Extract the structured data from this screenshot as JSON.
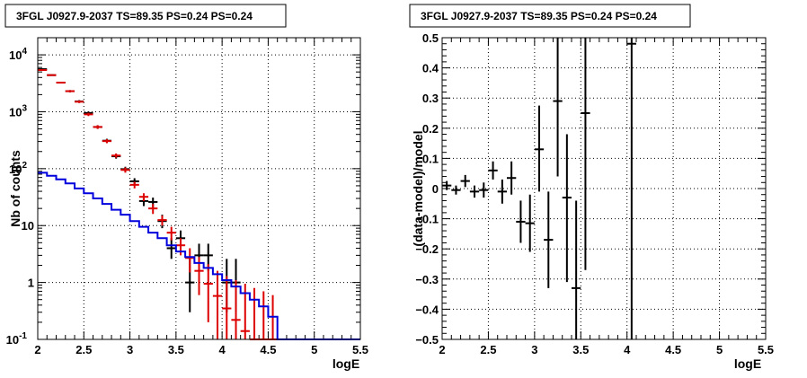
{
  "chart_data": [
    {
      "type": "line",
      "title": "3FGL J0927.9-2037 TS=89.35 PS=0.24 PS=0.24",
      "xlabel": "logE",
      "ylabel": "Nb of counts",
      "yscale": "log",
      "xlim": [
        2,
        5.5
      ],
      "ylim": [
        0.1,
        20000
      ],
      "grid": true,
      "x_ticks": [
        "2",
        "2.5",
        "3",
        "3.5",
        "4",
        "4.5",
        "5",
        "5.5"
      ],
      "y_ticks": [
        {
          "value": 0.1,
          "label": "10",
          "exp": "-1"
        },
        {
          "value": 1,
          "label": "1",
          "exp": ""
        },
        {
          "value": 10,
          "label": "10",
          "exp": ""
        },
        {
          "value": 100,
          "label": "10",
          "exp": "2"
        },
        {
          "value": 1000,
          "label": "10",
          "exp": "3"
        },
        {
          "value": 10000,
          "label": "10",
          "exp": "4"
        }
      ],
      "series": [
        {
          "color": "#000000",
          "kind": "errorbar",
          "points": [
            {
              "x": 2.05,
              "y": 5600,
              "lo": 5450,
              "hi": 5750
            },
            {
              "x": 2.15,
              "y": 4400,
              "lo": 4270,
              "hi": 4530
            },
            {
              "x": 2.25,
              "y": 3250,
              "lo": 3140,
              "hi": 3360
            },
            {
              "x": 2.35,
              "y": 2300,
              "lo": 2200,
              "hi": 2400
            },
            {
              "x": 2.45,
              "y": 1520,
              "lo": 1440,
              "hi": 1600
            },
            {
              "x": 2.55,
              "y": 950,
              "lo": 890,
              "hi": 1010
            },
            {
              "x": 2.65,
              "y": 540,
              "lo": 500,
              "hi": 580
            },
            {
              "x": 2.75,
              "y": 310,
              "lo": 285,
              "hi": 335
            },
            {
              "x": 2.85,
              "y": 165,
              "lo": 150,
              "hi": 180
            },
            {
              "x": 2.95,
              "y": 98,
              "lo": 88,
              "hi": 108
            },
            {
              "x": 3.05,
              "y": 60,
              "lo": 52,
              "hi": 68
            },
            {
              "x": 3.15,
              "y": 27,
              "lo": 22,
              "hi": 32
            },
            {
              "x": 3.25,
              "y": 26,
              "lo": 21,
              "hi": 31
            },
            {
              "x": 3.35,
              "y": 12,
              "lo": 9,
              "hi": 15.5
            },
            {
              "x": 3.45,
              "y": 4,
              "lo": 2.6,
              "hi": 6
            },
            {
              "x": 3.55,
              "y": 6,
              "lo": 4.2,
              "hi": 8.2
            },
            {
              "x": 3.65,
              "y": 1,
              "lo": 0.3,
              "hi": 2.6
            },
            {
              "x": 3.75,
              "y": 3,
              "lo": 1.6,
              "hi": 4.8
            },
            {
              "x": 3.85,
              "y": 3,
              "lo": 1.6,
              "hi": 4.8
            },
            {
              "x": 4.05,
              "y": 1,
              "lo": 0.3,
              "hi": 2.6
            },
            {
              "x": 4.15,
              "y": 1,
              "lo": 0.3,
              "hi": 2.6
            }
          ]
        },
        {
          "color": "#dd0000",
          "kind": "errorbar",
          "points": [
            {
              "x": 2.05,
              "y": 5400,
              "lo": 5250,
              "hi": 5550
            },
            {
              "x": 2.15,
              "y": 4400,
              "lo": 4270,
              "hi": 4530
            },
            {
              "x": 2.25,
              "y": 3250,
              "lo": 3140,
              "hi": 3360
            },
            {
              "x": 2.35,
              "y": 2300,
              "lo": 2200,
              "hi": 2400
            },
            {
              "x": 2.45,
              "y": 1500,
              "lo": 1420,
              "hi": 1580
            },
            {
              "x": 2.55,
              "y": 900,
              "lo": 840,
              "hi": 960
            },
            {
              "x": 2.65,
              "y": 540,
              "lo": 500,
              "hi": 580
            },
            {
              "x": 2.75,
              "y": 305,
              "lo": 280,
              "hi": 330
            },
            {
              "x": 2.85,
              "y": 170,
              "lo": 155,
              "hi": 185
            },
            {
              "x": 2.95,
              "y": 95,
              "lo": 85,
              "hi": 105
            },
            {
              "x": 3.05,
              "y": 52,
              "lo": 45,
              "hi": 59
            },
            {
              "x": 3.15,
              "y": 32,
              "lo": 27,
              "hi": 37
            },
            {
              "x": 3.25,
              "y": 20,
              "lo": 16,
              "hi": 24
            },
            {
              "x": 3.35,
              "y": 12.5,
              "lo": 10,
              "hi": 15
            },
            {
              "x": 3.45,
              "y": 7.5,
              "lo": 5.5,
              "hi": 9.5
            },
            {
              "x": 3.55,
              "y": 4.5,
              "lo": 3,
              "hi": 6
            },
            {
              "x": 3.65,
              "y": 2.7,
              "lo": 1.5,
              "hi": 4
            },
            {
              "x": 3.75,
              "y": 1.6,
              "lo": 0.6,
              "hi": 2.8
            },
            {
              "x": 3.85,
              "y": 0.95,
              "lo": 0.2,
              "hi": 2.1
            },
            {
              "x": 3.95,
              "y": 0.58,
              "lo": 0.1,
              "hi": 1.6
            },
            {
              "x": 4.05,
              "y": 0.35,
              "lo": 0.1,
              "hi": 1.3
            },
            {
              "x": 4.15,
              "y": 0.22,
              "lo": 0.1,
              "hi": 1.1
            },
            {
              "x": 4.25,
              "y": 0.14,
              "lo": 0.1,
              "hi": 0.95
            },
            {
              "x": 4.35,
              "y": 0.1,
              "lo": 0.1,
              "hi": 0.8
            },
            {
              "x": 4.45,
              "y": 0.1,
              "lo": 0.1,
              "hi": 0.7
            },
            {
              "x": 4.55,
              "y": 0.1,
              "lo": 0.1,
              "hi": 0.6
            }
          ]
        },
        {
          "color": "#0000dd",
          "kind": "step",
          "bin_edges": [
            2.0,
            2.1,
            2.2,
            2.3,
            2.4,
            2.5,
            2.6,
            2.7,
            2.8,
            2.9,
            3.0,
            3.1,
            3.2,
            3.3,
            3.4,
            3.5,
            3.6,
            3.7,
            3.8,
            3.9,
            4.0,
            4.1,
            4.2,
            4.3,
            4.4,
            4.5,
            4.6,
            5.5
          ],
          "values": [
            85,
            75,
            65,
            55,
            45,
            37,
            30,
            24,
            19,
            15.5,
            12,
            9.5,
            7.5,
            6,
            4.5,
            3.5,
            2.8,
            2.2,
            1.8,
            1.4,
            1.1,
            0.85,
            0.65,
            0.5,
            0.38,
            0.25,
            0.1
          ]
        }
      ]
    },
    {
      "type": "scatter",
      "title": "3FGL J0927.9-2037 TS=89.35 PS=0.24 PS=0.24",
      "xlabel": "logE",
      "ylabel": "(data-model)/model",
      "xlim": [
        2,
        5.5
      ],
      "ylim": [
        -0.5,
        0.5
      ],
      "grid": true,
      "x_ticks": [
        "2",
        "2.5",
        "3",
        "3.5",
        "4",
        "4.5",
        "5",
        "5.5"
      ],
      "y_ticks": [
        "−0.5",
        "−0.4",
        "−0.3",
        "−0.2",
        "−0.1",
        "0",
        "0.1",
        "0.2",
        "0.3",
        "0.4",
        "0.5"
      ],
      "series": [
        {
          "color": "#000000",
          "kind": "errorbar",
          "points": [
            {
              "x": 2.05,
              "y": 0.01,
              "lo": -0.005,
              "hi": 0.025
            },
            {
              "x": 2.15,
              "y": -0.005,
              "lo": -0.02,
              "hi": 0.01
            },
            {
              "x": 2.25,
              "y": 0.025,
              "lo": 0.005,
              "hi": 0.045
            },
            {
              "x": 2.35,
              "y": -0.01,
              "lo": -0.03,
              "hi": 0.01
            },
            {
              "x": 2.45,
              "y": -0.005,
              "lo": -0.03,
              "hi": 0.02
            },
            {
              "x": 2.55,
              "y": 0.06,
              "lo": 0.03,
              "hi": 0.09
            },
            {
              "x": 2.65,
              "y": -0.01,
              "lo": -0.05,
              "hi": 0.03
            },
            {
              "x": 2.75,
              "y": 0.035,
              "lo": -0.02,
              "hi": 0.09
            },
            {
              "x": 2.85,
              "y": -0.11,
              "lo": -0.18,
              "hi": -0.04
            },
            {
              "x": 2.95,
              "y": -0.115,
              "lo": -0.21,
              "hi": -0.02
            },
            {
              "x": 3.05,
              "y": 0.13,
              "lo": -0.01,
              "hi": 0.275
            },
            {
              "x": 3.15,
              "y": -0.17,
              "lo": -0.33,
              "hi": -0.01
            },
            {
              "x": 3.25,
              "y": 0.29,
              "lo": 0.04,
              "hi": 0.5
            },
            {
              "x": 3.35,
              "y": -0.03,
              "lo": -0.31,
              "hi": 0.18
            },
            {
              "x": 3.45,
              "y": -0.33,
              "lo": -0.5,
              "hi": -0.04
            },
            {
              "x": 3.55,
              "y": 0.25,
              "lo": -0.27,
              "hi": 0.5
            },
            {
              "x": 4.05,
              "y": 0.48,
              "lo": -0.5,
              "hi": 0.5
            }
          ]
        }
      ]
    }
  ]
}
